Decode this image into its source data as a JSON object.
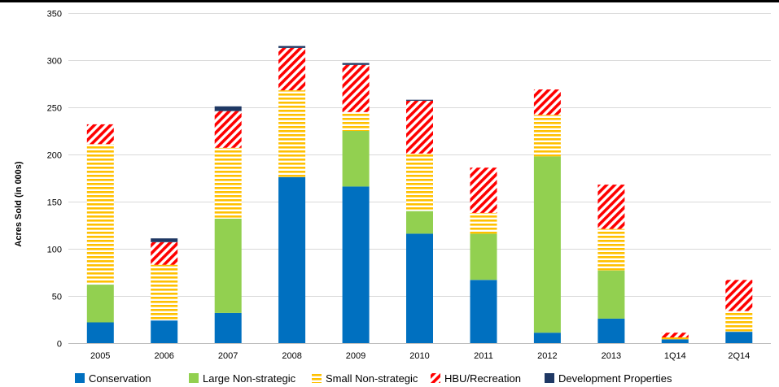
{
  "chart_data": {
    "type": "bar",
    "stacked": true,
    "title": "",
    "xlabel": "",
    "ylabel": "Acres Sold (in 000s)",
    "ylim": [
      0,
      350
    ],
    "yticks": [
      0,
      50,
      100,
      150,
      200,
      250,
      300,
      350
    ],
    "grid": true,
    "legend_position": "bottom",
    "categories": [
      "2005",
      "2006",
      "2007",
      "2008",
      "2009",
      "2010",
      "2011",
      "2012",
      "2013",
      "1Q14",
      "2Q14"
    ],
    "series": [
      {
        "name": "Conservation",
        "color": "#0070C0",
        "pattern": "solid",
        "values": [
          22,
          24,
          32,
          176,
          166,
          116,
          67,
          11,
          26,
          4,
          12
        ]
      },
      {
        "name": "Large Non-strategic",
        "color": "#92D050",
        "pattern": "solid",
        "values": [
          40,
          0,
          100,
          0,
          59,
          24,
          49,
          187,
          51,
          0,
          0
        ]
      },
      {
        "name": "Small Non-strategic",
        "color": "#FFC000",
        "pattern": "horizontal-stripes",
        "values": [
          149,
          59,
          75,
          92,
          20,
          61,
          22,
          44,
          44,
          2,
          22
        ]
      },
      {
        "name": "HBU/Recreation",
        "color": "#FF0000",
        "pattern": "diagonal-stripes",
        "values": [
          21,
          24,
          39,
          45,
          50,
          56,
          48,
          27,
          47,
          5,
          33
        ]
      },
      {
        "name": "Development Properties",
        "color": "#1F3864",
        "pattern": "solid",
        "values": [
          0,
          4,
          5,
          2,
          2,
          1,
          0,
          0,
          0,
          0,
          0
        ]
      }
    ]
  }
}
